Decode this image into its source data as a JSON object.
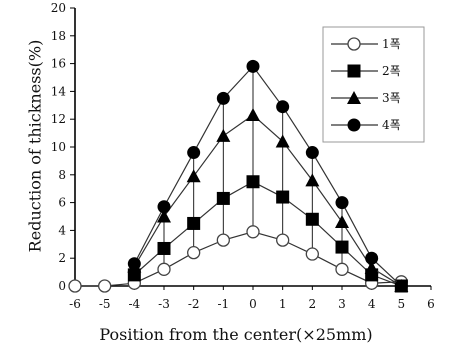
{
  "chart_data": {
    "type": "line",
    "xlabel": "Position from the center(×25mm)",
    "ylabel": "Reduction of thickness(%)",
    "x": [
      -6,
      -5,
      -4,
      -3,
      -2,
      -1,
      0,
      1,
      2,
      3,
      4,
      5
    ],
    "xticks": [
      "-6",
      "-5",
      "-4",
      "-3",
      "-2",
      "-1",
      "0",
      "1",
      "2",
      "3",
      "4",
      "5",
      "6"
    ],
    "xlim": [
      -6,
      6
    ],
    "ylim": [
      0,
      20
    ],
    "yticks": [
      "0",
      "2",
      "4",
      "6",
      "8",
      "10",
      "12",
      "14",
      "16",
      "18",
      "20"
    ],
    "grid": false,
    "legend_position": "top-right",
    "series": [
      {
        "name": "1폭",
        "marker": "open-circle",
        "values": [
          0,
          0,
          0.2,
          1.2,
          2.4,
          3.3,
          3.9,
          3.3,
          2.3,
          1.2,
          0.2,
          0.3
        ]
      },
      {
        "name": "2폭",
        "marker": "filled-square",
        "values": [
          null,
          null,
          0.8,
          2.7,
          4.5,
          6.3,
          7.5,
          6.4,
          4.8,
          2.8,
          0.8,
          0
        ]
      },
      {
        "name": "3폭",
        "marker": "filled-triangle",
        "values": [
          null,
          null,
          1.4,
          5.0,
          7.9,
          10.8,
          12.3,
          10.4,
          7.6,
          4.6,
          1.3,
          0
        ]
      },
      {
        "name": "4폭",
        "marker": "filled-circle",
        "values": [
          null,
          null,
          1.6,
          5.7,
          9.6,
          13.5,
          15.8,
          12.9,
          9.6,
          6.0,
          2.0,
          0
        ]
      }
    ]
  }
}
